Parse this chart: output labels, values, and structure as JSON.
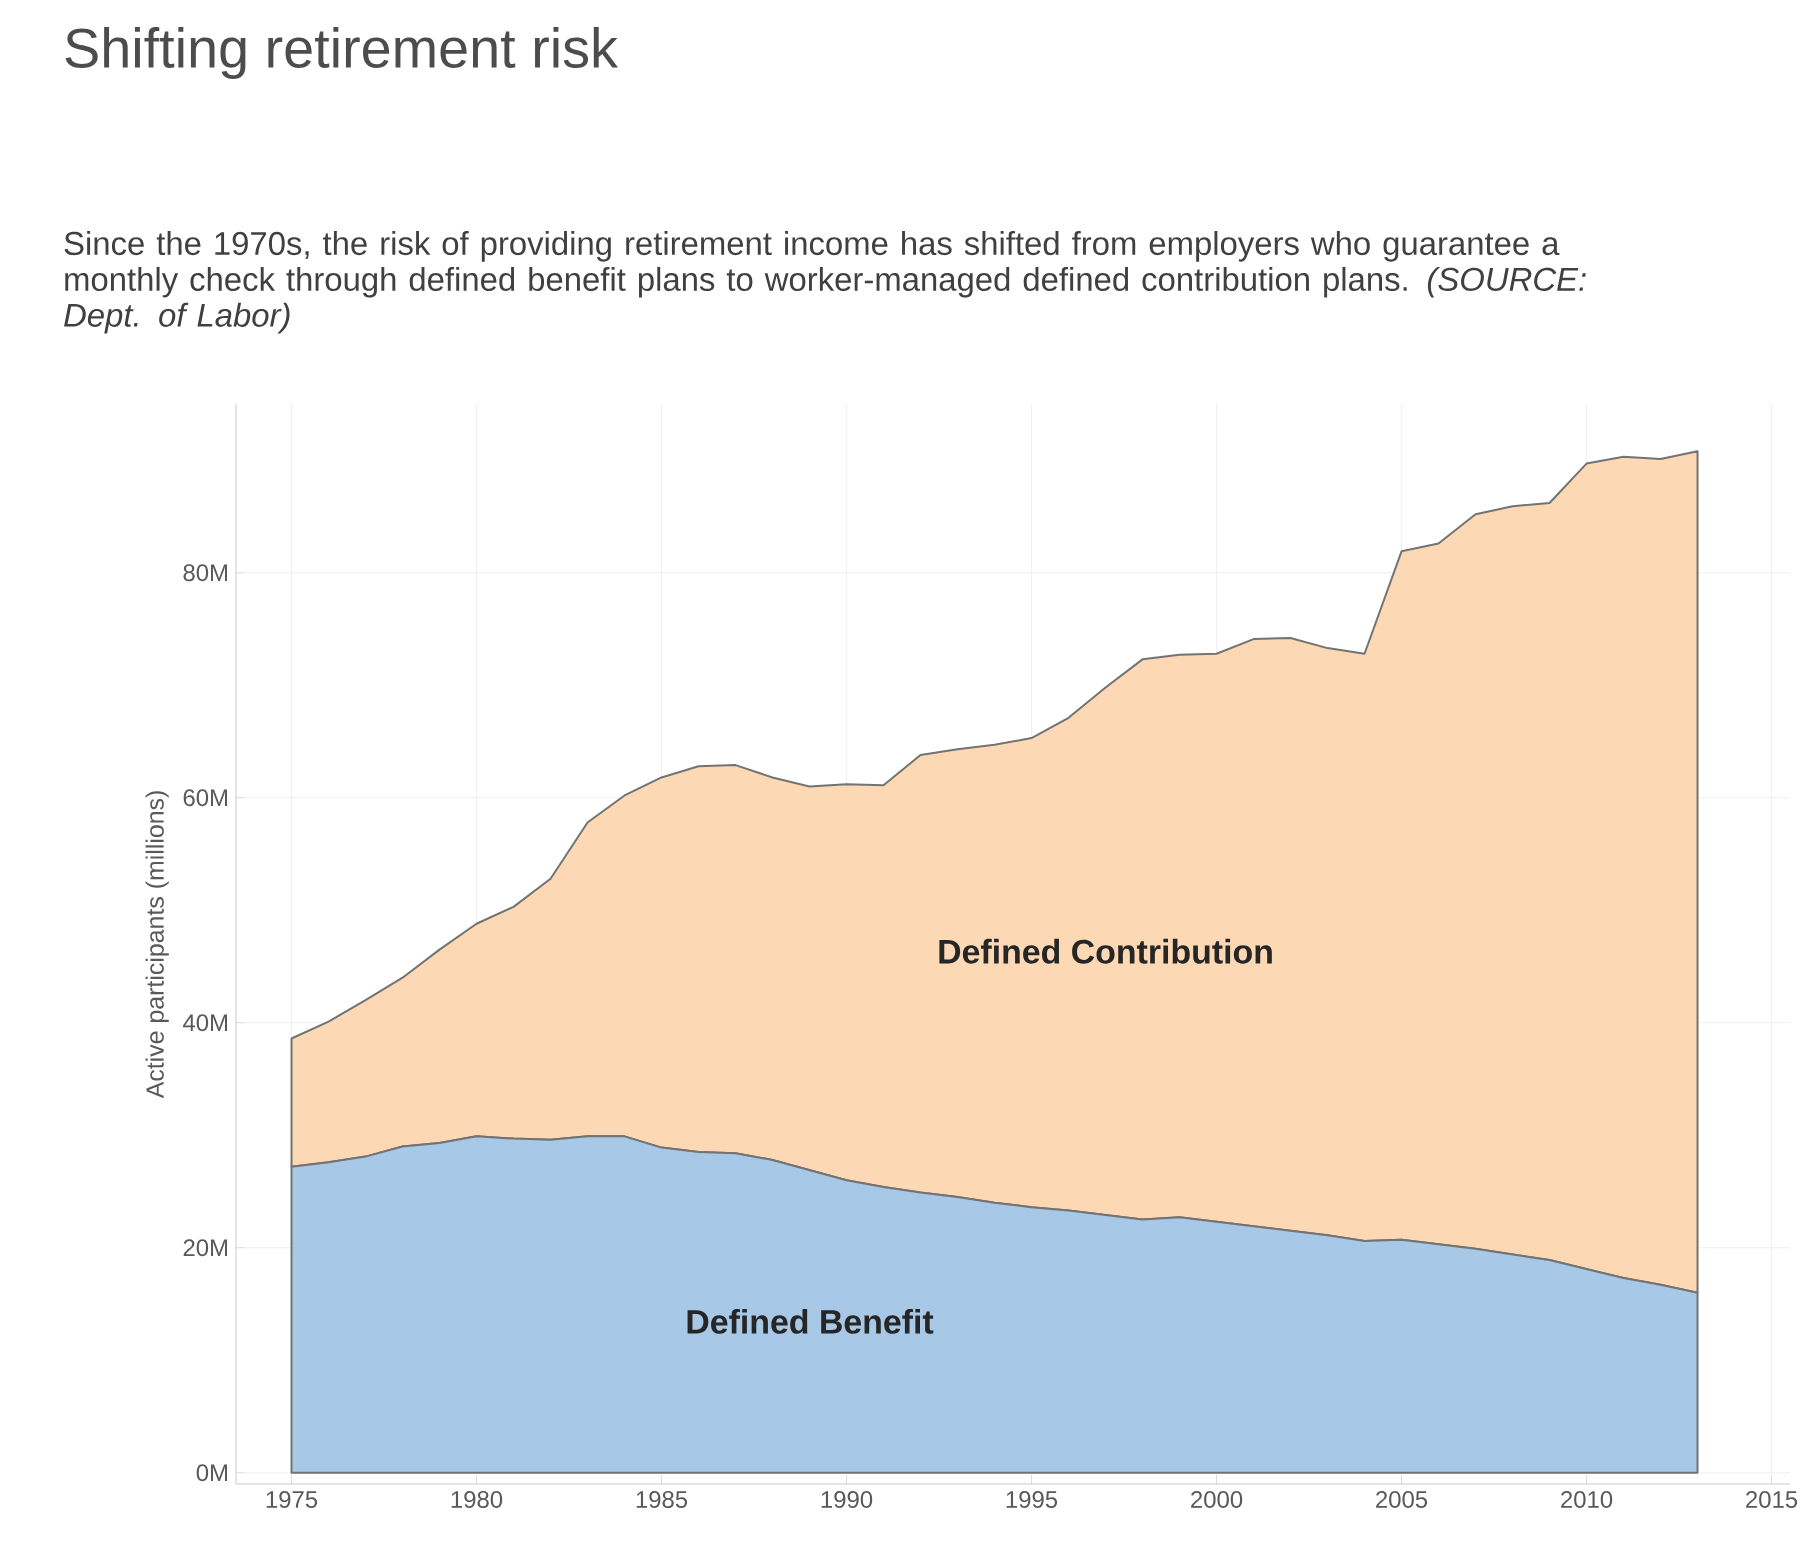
{
  "chart_data": {
    "type": "area",
    "title": "Shifting retirement risk",
    "subtitle": "Since the 1970s, the risk of providing retirement income has shifted from employers who guarantee a monthly check through defined benefit plans to worker-managed defined contribution plans. *(SOURCE: Dept. of Labor)*",
    "ylabel": "Active participants (millions)",
    "x": [
      1975,
      1976,
      1977,
      1978,
      1979,
      1980,
      1981,
      1982,
      1983,
      1984,
      1985,
      1986,
      1987,
      1988,
      1989,
      1990,
      1991,
      1992,
      1993,
      1994,
      1995,
      1996,
      1997,
      1998,
      1999,
      2000,
      2001,
      2002,
      2003,
      2004,
      2005,
      2006,
      2007,
      2008,
      2009,
      2010,
      2011,
      2012,
      2013
    ],
    "stacked": true,
    "series": [
      {
        "name": "Defined Benefit",
        "color": "#a7c9e7",
        "values": [
          27.2,
          27.6,
          28.1,
          29.0,
          29.3,
          29.9,
          29.7,
          29.6,
          29.9,
          29.9,
          28.9,
          28.5,
          28.4,
          27.8,
          26.9,
          26.0,
          25.4,
          24.9,
          24.5,
          24.0,
          23.6,
          23.3,
          22.9,
          22.5,
          22.7,
          22.3,
          21.9,
          21.5,
          21.1,
          20.6,
          20.7,
          20.3,
          19.9,
          19.4,
          18.9,
          18.1,
          17.3,
          16.7,
          16.0
        ]
      },
      {
        "name": "Defined Contribution",
        "color": "#fcd9b4",
        "values": [
          11.4,
          12.5,
          13.9,
          15.0,
          17.2,
          18.9,
          20.6,
          23.2,
          27.9,
          30.3,
          32.9,
          34.3,
          34.5,
          34.0,
          34.1,
          35.2,
          35.7,
          38.9,
          39.8,
          40.7,
          41.7,
          43.8,
          46.9,
          49.8,
          50.0,
          50.5,
          52.2,
          52.7,
          52.2,
          52.2,
          61.2,
          62.3,
          65.3,
          66.5,
          67.3,
          71.6,
          73.0,
          73.4,
          74.8
        ]
      }
    ],
    "xlim": [
      1973.5,
      2015.5
    ],
    "xticks": [
      1975,
      1980,
      1985,
      1990,
      1995,
      2000,
      2005,
      2010,
      2015
    ],
    "ylim": [
      -1,
      95
    ],
    "yticks": [
      {
        "value": 0,
        "label": "0M"
      },
      {
        "value": 20,
        "label": "20M"
      },
      {
        "value": 40,
        "label": "40M"
      },
      {
        "value": 60,
        "label": "60M"
      },
      {
        "value": 80,
        "label": "80M"
      }
    ],
    "grid": true
  }
}
